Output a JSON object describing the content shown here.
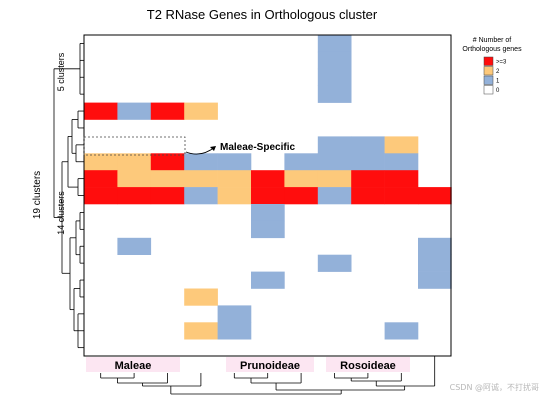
{
  "chart_data": {
    "type": "heatmap",
    "title": "T2 RNase Genes in Orthologous cluster",
    "rows": 19,
    "columns": 11,
    "legend": {
      "title_line1": "# Number of",
      "title_line2": "Orthologous genes",
      "placement": "top-right",
      "entries": [
        {
          "label": ">=3",
          "color": "#ff0d0d"
        },
        {
          "label": "2",
          "color": "#fdc97b"
        },
        {
          "label": "1",
          "color": "#93b1d9"
        },
        {
          "label": "0",
          "color": "#ffffff"
        }
      ]
    },
    "values": [
      [
        0,
        0,
        0,
        0,
        0,
        0,
        0,
        1,
        0,
        0,
        0
      ],
      [
        0,
        0,
        0,
        0,
        0,
        0,
        0,
        1,
        0,
        0,
        0
      ],
      [
        0,
        0,
        0,
        0,
        0,
        0,
        0,
        1,
        0,
        0,
        0
      ],
      [
        0,
        0,
        0,
        0,
        0,
        0,
        0,
        1,
        0,
        0,
        0
      ],
      [
        3,
        1,
        3,
        2,
        0,
        0,
        0,
        0,
        0,
        0,
        0
      ],
      [
        0,
        0,
        0,
        0,
        0,
        0,
        0,
        0,
        0,
        0,
        0
      ],
      [
        0,
        0,
        0,
        0,
        0,
        0,
        0,
        1,
        1,
        2,
        0
      ],
      [
        2,
        2,
        3,
        1,
        1,
        0,
        1,
        1,
        1,
        1,
        0
      ],
      [
        3,
        2,
        2,
        2,
        2,
        3,
        2,
        2,
        3,
        3,
        0
      ],
      [
        3,
        3,
        3,
        1,
        2,
        3,
        3,
        1,
        3,
        3,
        3
      ],
      [
        0,
        0,
        0,
        0,
        0,
        1,
        0,
        0,
        0,
        0,
        0
      ],
      [
        0,
        0,
        0,
        0,
        0,
        1,
        0,
        0,
        0,
        0,
        0
      ],
      [
        0,
        1,
        0,
        0,
        0,
        0,
        0,
        0,
        0,
        0,
        1
      ],
      [
        0,
        0,
        0,
        0,
        0,
        0,
        0,
        1,
        0,
        0,
        1
      ],
      [
        0,
        0,
        0,
        0,
        0,
        1,
        0,
        0,
        0,
        0,
        1
      ],
      [
        0,
        0,
        0,
        2,
        0,
        0,
        0,
        0,
        0,
        0,
        0
      ],
      [
        0,
        0,
        0,
        0,
        1,
        0,
        0,
        0,
        0,
        0,
        0
      ],
      [
        0,
        0,
        0,
        2,
        1,
        0,
        0,
        0,
        0,
        1,
        0
      ],
      [
        0,
        0,
        0,
        0,
        0,
        0,
        0,
        0,
        0,
        0,
        0
      ]
    ],
    "column_groups": [
      {
        "label": "Maleae",
        "columns": [
          0,
          2
        ]
      },
      {
        "label": "Prunoideae",
        "columns": [
          4,
          6
        ]
      },
      {
        "label": "Rosoideae",
        "columns": [
          7,
          9
        ]
      }
    ],
    "row_group_labels": {
      "total": "19  clusters",
      "top": "5 clusters",
      "bottom": "14 clusters"
    },
    "annotation": "Maleae-Specific"
  }
}
